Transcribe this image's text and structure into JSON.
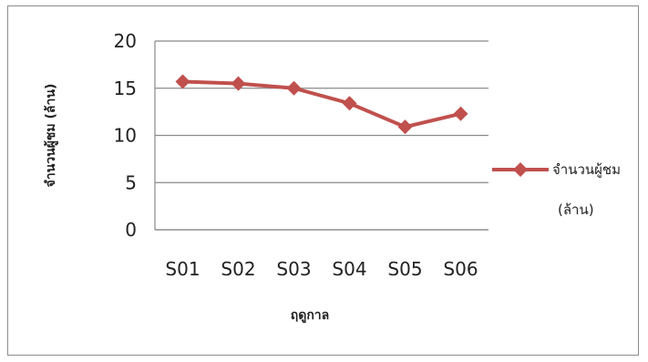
{
  "chart_data": {
    "type": "line",
    "categories": [
      "S01",
      "S02",
      "S03",
      "S04",
      "S05",
      "S06"
    ],
    "series": [
      {
        "name": "จำนวนผู้ชม (ล้าน)",
        "values": [
          15.7,
          15.5,
          15.0,
          13.4,
          10.9,
          12.3
        ],
        "color": "#c0504d"
      }
    ],
    "xlabel": "ฤดูกาล",
    "ylabel": "จำนวนผู้ชม (ล้าน)",
    "ylim": [
      0,
      20
    ],
    "yticks": [
      0,
      5,
      10,
      15,
      20
    ],
    "grid": true,
    "legend": "right",
    "legend_lines": [
      "จำนวนผู้ชม",
      "(ล้าน)"
    ]
  }
}
